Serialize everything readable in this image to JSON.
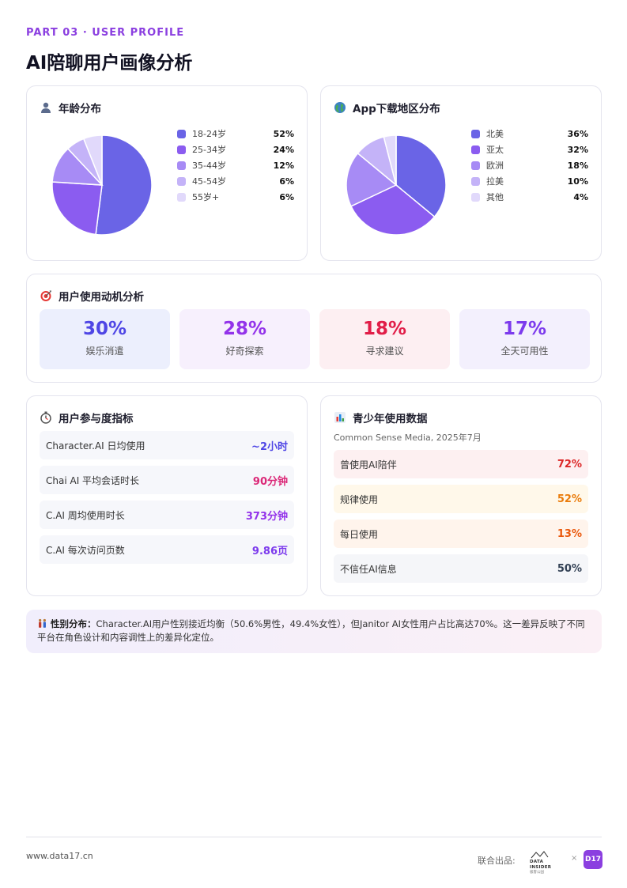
{
  "header": {
    "part_label": "PART 03 · USER PROFILE",
    "title": "AI陪聊用户画像分析"
  },
  "age": {
    "title": "年龄分布",
    "icon": "person-icon",
    "items": [
      {
        "label": "18-24岁",
        "value": "52%",
        "color": "#6a64e6"
      },
      {
        "label": "25-34岁",
        "value": "24%",
        "color": "#8b5cf0"
      },
      {
        "label": "35-44岁",
        "value": "12%",
        "color": "#a78bf5"
      },
      {
        "label": "45-54岁",
        "value": "6%",
        "color": "#c4b3f8"
      },
      {
        "label": "55岁+",
        "value": "6%",
        "color": "#e1d9fb"
      }
    ]
  },
  "region": {
    "title": "App下载地区分布",
    "icon": "globe-icon",
    "items": [
      {
        "label": "北美",
        "value": "36%",
        "color": "#6a64e6"
      },
      {
        "label": "亚太",
        "value": "32%",
        "color": "#8b5cf0"
      },
      {
        "label": "欧洲",
        "value": "18%",
        "color": "#a78bf5"
      },
      {
        "label": "拉美",
        "value": "10%",
        "color": "#c4b3f8"
      },
      {
        "label": "其他",
        "value": "4%",
        "color": "#e1d9fb"
      }
    ]
  },
  "chart_data": [
    {
      "type": "pie",
      "title": "年龄分布",
      "categories": [
        "18-24岁",
        "25-34岁",
        "35-44岁",
        "45-54岁",
        "55岁+"
      ],
      "values": [
        52,
        24,
        12,
        6,
        6
      ]
    },
    {
      "type": "pie",
      "title": "App下载地区分布",
      "categories": [
        "北美",
        "亚太",
        "欧洲",
        "拉美",
        "其他"
      ],
      "values": [
        36,
        32,
        18,
        10,
        4
      ]
    }
  ],
  "motivation": {
    "title": "用户使用动机分析",
    "icon": "target-icon",
    "items": [
      {
        "value": "30%",
        "label": "娱乐消遣",
        "bg": "#eceffd",
        "color": "#4f46e5"
      },
      {
        "value": "28%",
        "label": "好奇探索",
        "bg": "#f7f0fd",
        "color": "#9333ea"
      },
      {
        "value": "18%",
        "label": "寻求建议",
        "bg": "#fdeff2",
        "color": "#e11d48"
      },
      {
        "value": "17%",
        "label": "全天可用性",
        "bg": "#f3f0fd",
        "color": "#7c3aed"
      }
    ]
  },
  "engagement": {
    "title": "用户参与度指标",
    "icon": "stopwatch-icon",
    "rows": [
      {
        "label": "Character.AI 日均使用",
        "value": "~2小时",
        "color": "#4f46e5"
      },
      {
        "label": "Chai AI 平均会话时长",
        "value": "90分钟",
        "color": "#db2777"
      },
      {
        "label": "C.AI 周均使用时长",
        "value": "373分钟",
        "color": "#9333ea"
      },
      {
        "label": "C.AI 每次访问页数",
        "value": "9.86页",
        "color": "#7c3aed"
      }
    ]
  },
  "teen": {
    "title": "青少年使用数据",
    "icon": "bar-chart-icon",
    "source": "Common Sense Media, 2025年7月",
    "rows": [
      {
        "label": "曾使用AI陪伴",
        "value": "72%",
        "color": "#dc2626",
        "bg": "#fdf0f1"
      },
      {
        "label": "规律使用",
        "value": "52%",
        "color": "#ea7c0c",
        "bg": "#fff8ea"
      },
      {
        "label": "每日使用",
        "value": "13%",
        "color": "#ea580c",
        "bg": "#fff4ec"
      },
      {
        "label": "不信任AI信息",
        "value": "50%",
        "color": "#334155",
        "bg": "#f5f6f9"
      }
    ]
  },
  "banner": {
    "icon": "couple-icon",
    "lead": "性别分布：",
    "text": "Character.AI用户性别接近均衡（50.6%男性，49.4%女性），但Janitor AI女性用户占比高达70%。这一差异反映了不同平台在角色设计和内容调性上的差异化定位。"
  },
  "footer": {
    "site": "www.data17.cn",
    "joint_label": "联合出品:",
    "partner_logo_text": "DATA INSIDER",
    "partner_logo_sub": "极客公园",
    "separator": "×",
    "brand_badge": "D17"
  }
}
